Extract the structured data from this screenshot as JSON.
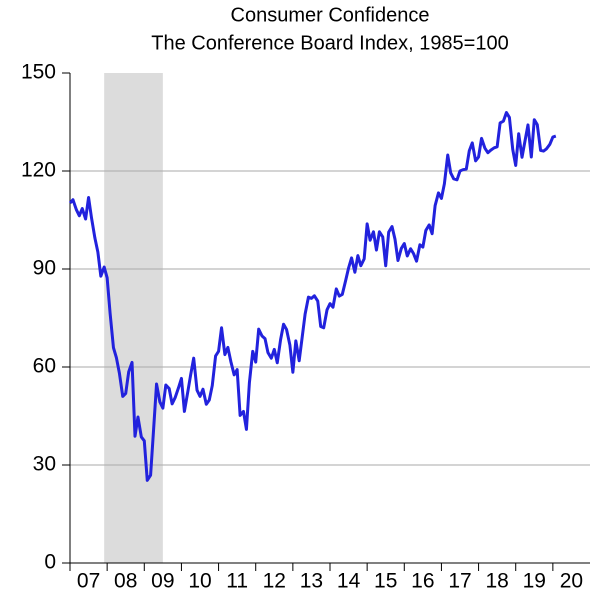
{
  "chart_data": {
    "type": "line",
    "title": "Consumer Confidence",
    "subtitle": "The Conference Board Index, 1985=100",
    "color": "#2222dd",
    "recession": [
      2007.92,
      2009.5
    ],
    "recession_color": "#dcdcdc",
    "xlim": [
      2007,
      2021
    ],
    "xticks": [
      {
        "value": 2007,
        "label": "07"
      },
      {
        "value": 2008,
        "label": "08"
      },
      {
        "value": 2009,
        "label": "09"
      },
      {
        "value": 2010,
        "label": "10"
      },
      {
        "value": 2011,
        "label": "11"
      },
      {
        "value": 2012,
        "label": "12"
      },
      {
        "value": 2013,
        "label": "13"
      },
      {
        "value": 2014,
        "label": "14"
      },
      {
        "value": 2015,
        "label": "15"
      },
      {
        "value": 2016,
        "label": "16"
      },
      {
        "value": 2017,
        "label": "17"
      },
      {
        "value": 2018,
        "label": "18"
      },
      {
        "value": 2019,
        "label": "19"
      },
      {
        "value": 2020,
        "label": "20"
      }
    ],
    "ylim": [
      0,
      150
    ],
    "yticks": [
      0,
      30,
      60,
      90,
      120,
      150
    ],
    "grid": true,
    "x": [
      2007.0,
      2007.08,
      2007.17,
      2007.25,
      2007.33,
      2007.42,
      2007.5,
      2007.58,
      2007.67,
      2007.75,
      2007.83,
      2007.92,
      2008.0,
      2008.08,
      2008.17,
      2008.25,
      2008.33,
      2008.42,
      2008.5,
      2008.58,
      2008.67,
      2008.75,
      2008.83,
      2008.92,
      2009.0,
      2009.08,
      2009.17,
      2009.25,
      2009.33,
      2009.42,
      2009.5,
      2009.58,
      2009.67,
      2009.75,
      2009.83,
      2009.92,
      2010.0,
      2010.08,
      2010.17,
      2010.25,
      2010.33,
      2010.42,
      2010.5,
      2010.58,
      2010.67,
      2010.75,
      2010.83,
      2010.92,
      2011.0,
      2011.08,
      2011.17,
      2011.25,
      2011.33,
      2011.42,
      2011.5,
      2011.58,
      2011.67,
      2011.75,
      2011.83,
      2011.92,
      2012.0,
      2012.08,
      2012.17,
      2012.25,
      2012.33,
      2012.42,
      2012.5,
      2012.58,
      2012.67,
      2012.75,
      2012.83,
      2012.92,
      2013.0,
      2013.08,
      2013.17,
      2013.25,
      2013.33,
      2013.42,
      2013.5,
      2013.58,
      2013.67,
      2013.75,
      2013.83,
      2013.92,
      2014.0,
      2014.08,
      2014.17,
      2014.25,
      2014.33,
      2014.42,
      2014.5,
      2014.58,
      2014.67,
      2014.75,
      2014.83,
      2014.92,
      2015.0,
      2015.08,
      2015.17,
      2015.25,
      2015.33,
      2015.42,
      2015.5,
      2015.58,
      2015.67,
      2015.75,
      2015.83,
      2015.92,
      2016.0,
      2016.08,
      2016.17,
      2016.25,
      2016.33,
      2016.42,
      2016.5,
      2016.58,
      2016.67,
      2016.75,
      2016.83,
      2016.92,
      2017.0,
      2017.08,
      2017.17,
      2017.25,
      2017.33,
      2017.42,
      2017.5,
      2017.58,
      2017.67,
      2017.75,
      2017.83,
      2017.92,
      2018.0,
      2018.08,
      2018.17,
      2018.25,
      2018.33,
      2018.42,
      2018.5,
      2018.58,
      2018.67,
      2018.75,
      2018.83,
      2018.92,
      2019.0,
      2019.08,
      2019.17,
      2019.25,
      2019.33,
      2019.42,
      2019.5,
      2019.58,
      2019.67,
      2019.75,
      2019.83,
      2019.92,
      2020.0,
      2020.08
    ],
    "values": [
      110.2,
      111.2,
      108.2,
      106.3,
      108.5,
      105.3,
      111.9,
      105.6,
      99.5,
      95.2,
      87.8,
      90.6,
      87.3,
      76.4,
      65.9,
      62.8,
      58.1,
      51.0,
      51.9,
      58.5,
      61.4,
      38.8,
      44.7,
      38.6,
      37.4,
      25.3,
      26.9,
      40.8,
      54.8,
      49.3,
      47.4,
      54.5,
      53.4,
      48.7,
      50.6,
      53.6,
      56.5,
      46.4,
      52.3,
      57.7,
      62.7,
      52.9,
      51.0,
      53.2,
      48.6,
      49.9,
      54.3,
      63.4,
      64.8,
      72.0,
      63.8,
      66.0,
      61.7,
      57.6,
      59.2,
      45.2,
      46.4,
      40.9,
      55.2,
      64.8,
      61.5,
      71.6,
      69.5,
      68.7,
      64.4,
      62.7,
      65.4,
      61.3,
      68.4,
      73.1,
      71.5,
      66.7,
      58.4,
      68.0,
      61.9,
      69.0,
      76.2,
      81.4,
      81.0,
      81.8,
      80.2,
      72.4,
      72.0,
      77.5,
      79.4,
      78.3,
      83.9,
      81.7,
      82.2,
      86.4,
      90.3,
      93.4,
      89.0,
      94.1,
      91.0,
      93.1,
      103.8,
      98.8,
      101.4,
      95.8,
      101.4,
      99.8,
      91.0,
      101.3,
      103.0,
      99.1,
      92.6,
      96.3,
      97.8,
      94.0,
      96.2,
      94.7,
      92.4,
      97.4,
      96.7,
      101.8,
      103.5,
      100.8,
      109.4,
      113.3,
      111.6,
      116.1,
      124.9,
      119.4,
      117.6,
      117.3,
      120.0,
      120.4,
      120.6,
      126.2,
      128.6,
      123.1,
      124.3,
      130.0,
      127.0,
      125.6,
      126.4,
      127.1,
      127.4,
      134.7,
      135.3,
      137.9,
      136.4,
      126.6,
      121.7,
      131.4,
      124.2,
      129.2,
      134.1,
      124.3,
      135.7,
      134.2,
      126.3,
      126.1,
      126.8,
      128.2,
      130.4,
      130.7
    ]
  }
}
